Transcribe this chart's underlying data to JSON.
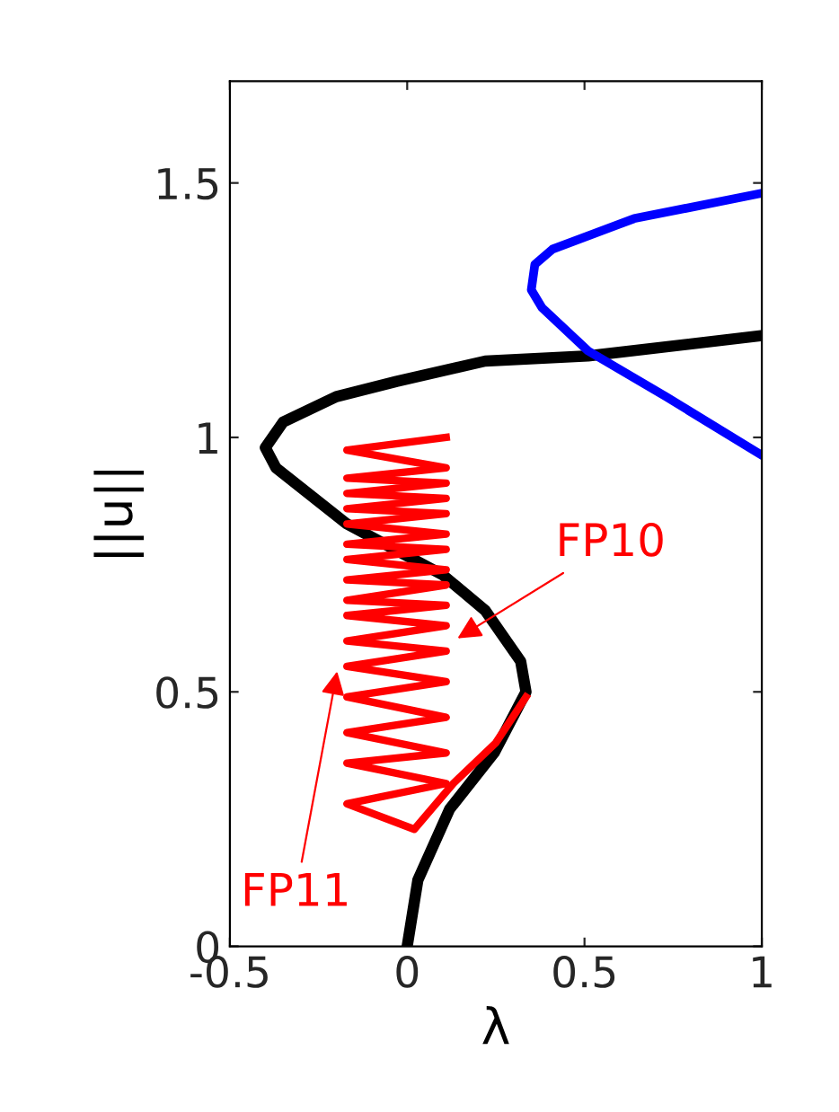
{
  "chart_data": {
    "type": "line",
    "xlabel": "λ",
    "ylabel": "||u||",
    "xlim": [
      -0.5,
      1
    ],
    "ylim": [
      0,
      1.7
    ],
    "xticks": [
      -0.5,
      0,
      0.5,
      1
    ],
    "yticks": [
      0,
      0.5,
      1,
      1.5
    ],
    "grid": false,
    "legend": false,
    "marker": "none",
    "line_style": "solid",
    "series": [
      {
        "color": "#000000",
        "x": [
          0.0,
          0.03,
          0.12,
          0.245,
          0.335,
          0.32,
          0.22,
          0.1,
          -0.17,
          -0.37,
          -0.4,
          -0.35,
          -0.2,
          -0.03,
          0.22,
          0.51,
          1.0
        ],
        "values": [
          0.0,
          0.13,
          0.27,
          0.38,
          0.5,
          0.56,
          0.66,
          0.73,
          0.83,
          0.94,
          0.98,
          1.03,
          1.08,
          1.11,
          1.15,
          1.16,
          1.2
        ]
      },
      {
        "color": "#0000ff",
        "x": [
          1.0,
          0.64,
          0.41,
          0.36,
          0.35,
          0.38,
          0.51,
          0.73,
          1.0
        ],
        "values": [
          1.48,
          1.43,
          1.37,
          1.34,
          1.29,
          1.255,
          1.17,
          1.08,
          0.965
        ]
      },
      {
        "color": "#ff0000",
        "x": [
          0.335,
          0.25,
          0.13,
          0.02,
          -0.17,
          0.11,
          -0.17,
          0.11,
          -0.17,
          0.11,
          -0.17,
          0.11,
          -0.17,
          0.11,
          -0.17,
          0.11,
          -0.17,
          0.11,
          -0.17,
          0.11,
          -0.17,
          0.11,
          -0.17,
          0.11,
          -0.17,
          0.11,
          -0.17,
          0.11,
          -0.17,
          0.11,
          -0.17,
          0.11,
          -0.17,
          0.11,
          -0.17,
          0.11
        ],
        "values": [
          0.49,
          0.4,
          0.32,
          0.23,
          0.28,
          0.32,
          0.36,
          0.38,
          0.42,
          0.45,
          0.49,
          0.52,
          0.55,
          0.58,
          0.6,
          0.63,
          0.65,
          0.67,
          0.68,
          0.71,
          0.72,
          0.74,
          0.76,
          0.78,
          0.79,
          0.81,
          0.83,
          0.85,
          0.86,
          0.88,
          0.89,
          0.91,
          0.92,
          0.94,
          0.975,
          1.0
        ]
      }
    ],
    "annotations": [
      {
        "text": "FP10",
        "x": 0.13,
        "y": 0.6
      },
      {
        "text": "FP11",
        "x": -0.195,
        "y": 0.55
      }
    ]
  }
}
